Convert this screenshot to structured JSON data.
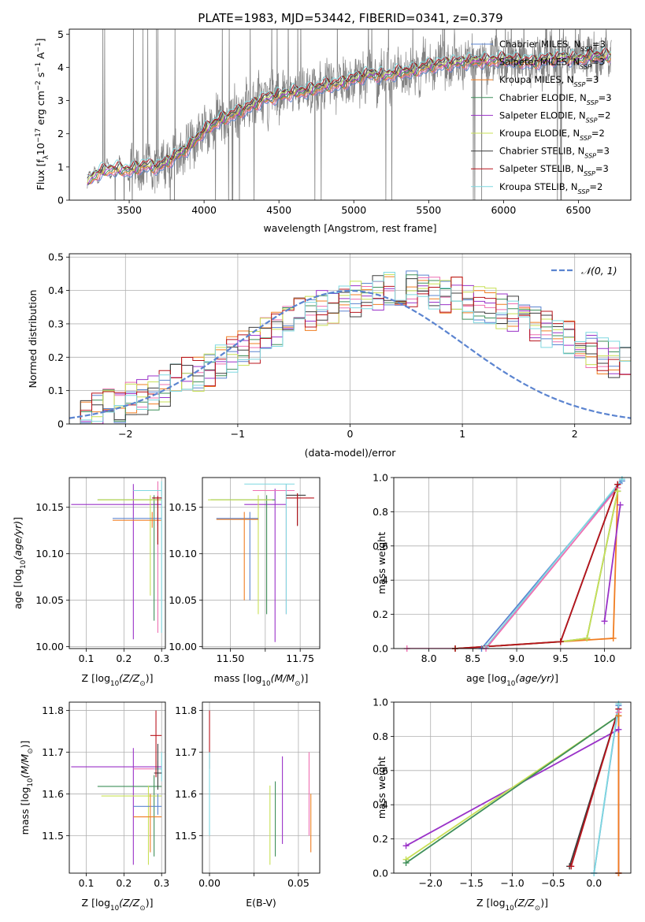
{
  "title": "PLATE=1983, MJD=53442, FIBERID=0341, z=0.379",
  "colors": {
    "grid": "#b0b0b0",
    "flux_data": "#808080",
    "gaussian": "#5b84d0"
  },
  "models": [
    {
      "name": "Chabrier MILES, N",
      "sub": "SSP",
      "suffix": "=3",
      "color": "#5b84d0"
    },
    {
      "name": "Salpeter MILES, N",
      "sub": "SSP",
      "suffix": "=3",
      "color": "#ee6fb1"
    },
    {
      "name": "Kroupa MILES, N",
      "sub": "SSP",
      "suffix": "=3",
      "color": "#f07d21"
    },
    {
      "name": "Chabrier ELODIE, N",
      "sub": "SSP",
      "suffix": "=3",
      "color": "#3f8f5a"
    },
    {
      "name": "Salpeter ELODIE, N",
      "sub": "SSP",
      "suffix": "=2",
      "color": "#9a32c8"
    },
    {
      "name": "Kroupa ELODIE, N",
      "sub": "SSP",
      "suffix": "=2",
      "color": "#c8e056"
    },
    {
      "name": "Chabrier STELIB, N",
      "sub": "SSP",
      "suffix": "=3",
      "color": "#3d3d3d"
    },
    {
      "name": "Salpeter STELIB, N",
      "sub": "SSP",
      "suffix": "=3",
      "color": "#b8141c"
    },
    {
      "name": "Kroupa STELIB, N",
      "sub": "SSP",
      "suffix": "=2",
      "color": "#7fd8e0"
    }
  ],
  "chart_data": [
    {
      "id": "spectrum",
      "type": "line",
      "xlabel": "wavelength [Angstrom, rest frame]",
      "ylabel": "Flux [f",
      "ylabel_parts": {
        "f_sub": "λ",
        "pre": "10",
        "exp1": "−17",
        "unit": " erg cm",
        "exp2": "−2",
        "s": " s",
        "exp3": "−1",
        "A": " A",
        "exp4": "−1",
        "close": "]"
      },
      "xlim": [
        3100,
        6850
      ],
      "ylim": [
        0,
        5.15
      ],
      "xticks": [
        3500,
        4000,
        4500,
        5000,
        5500,
        6000,
        6500
      ],
      "yticks": [
        0,
        1,
        2,
        3,
        4,
        5
      ],
      "grid": false,
      "legend": "right",
      "continuum_anchors": {
        "x": [
          3220,
          3300,
          3400,
          3500,
          3600,
          3700,
          3800,
          3900,
          4000,
          4100,
          4200,
          4300,
          4400,
          4500,
          4600,
          4700,
          4800,
          4900,
          5000,
          5100,
          5200,
          5300,
          5400,
          5500,
          5600,
          5700,
          5800,
          5900,
          6000,
          6100,
          6200,
          6300,
          6400,
          6500,
          6600,
          6700
        ],
        "y": [
          0.55,
          0.85,
          0.95,
          0.9,
          1.05,
          1.0,
          1.3,
          1.6,
          2.1,
          2.4,
          2.6,
          2.8,
          3.05,
          3.15,
          3.25,
          3.3,
          3.45,
          3.5,
          3.65,
          3.8,
          3.75,
          3.85,
          3.9,
          4.05,
          4.1,
          4.15,
          4.2,
          4.2,
          4.25,
          4.2,
          4.15,
          4.25,
          4.3,
          4.25,
          4.35,
          4.35
        ]
      }
    },
    {
      "id": "residuals",
      "type": "step",
      "xlabel": "(data-model)/error",
      "ylabel": "Normed distribution",
      "xlim": [
        -2.5,
        2.5
      ],
      "ylim": [
        0,
        0.51
      ],
      "xticks": [
        -2,
        -1,
        0,
        1,
        2
      ],
      "yticks": [
        0.0,
        0.1,
        0.2,
        0.3,
        0.4,
        0.5
      ],
      "grid": true,
      "legend": "top-right",
      "legend_label": "𝒩(0, 1)",
      "bin_width": 0.1,
      "series_base": [
        0.02,
        0.03,
        0.04,
        0.05,
        0.06,
        0.07,
        0.08,
        0.09,
        0.11,
        0.12,
        0.14,
        0.15,
        0.17,
        0.19,
        0.21,
        0.23,
        0.24,
        0.26,
        0.28,
        0.3,
        0.32,
        0.33,
        0.35,
        0.36,
        0.37,
        0.38,
        0.39,
        0.4,
        0.41,
        0.41,
        0.41,
        0.41,
        0.4,
        0.39,
        0.38,
        0.37,
        0.36,
        0.35,
        0.34,
        0.33,
        0.31,
        0.3,
        0.28,
        0.27,
        0.25,
        0.24,
        0.22,
        0.2,
        0.19,
        0.17
      ]
    },
    {
      "id": "age-vs-Z",
      "type": "errorbar",
      "xlabel": "Z [log",
      "xlabel_parts": {
        "sub": "10",
        "mid": "(Z/Z",
        "sub2": "⊙",
        "close": ")]"
      },
      "ylabel": "age  [log",
      "ylabel_parts": {
        "sub": "10",
        "mid": "(age/yr)",
        "close": "]"
      },
      "xlim": [
        0.055,
        0.31
      ],
      "ylim": [
        9.998,
        10.182
      ],
      "xticks": [
        0.1,
        0.2,
        0.3
      ],
      "xtick_labels": [
        "0.1",
        "0.2",
        "0.3"
      ],
      "yticks": [
        10.0,
        10.05,
        10.1,
        10.15
      ],
      "ytick_labels": [
        "10.00",
        "10.05",
        "10.10",
        "10.15"
      ],
      "grid": true,
      "points": [
        {
          "m": 4,
          "x": 0.225,
          "y": 10.153,
          "xlo": 0.06,
          "xhi": 0.3,
          "ylo": 10.008,
          "yhi": 10.175
        },
        {
          "m": 3,
          "x": 0.28,
          "y": 10.158,
          "xlo": 0.13,
          "xhi": 0.3,
          "ylo": 10.028,
          "yhi": 10.163
        },
        {
          "m": 5,
          "x": 0.27,
          "y": 10.158,
          "xlo": 0.13,
          "xhi": 0.3,
          "ylo": 10.055,
          "yhi": 10.163
        },
        {
          "m": 0,
          "x": 0.29,
          "y": 10.138,
          "xlo": 0.17,
          "xhi": 0.3,
          "ylo": 10.13,
          "yhi": 10.145
        },
        {
          "m": 2,
          "x": 0.275,
          "y": 10.136,
          "xlo": 0.17,
          "xhi": 0.3,
          "ylo": 10.128,
          "yhi": 10.145
        },
        {
          "m": 1,
          "x": 0.29,
          "y": 10.168,
          "xlo": 0.225,
          "xhi": 0.3,
          "ylo": 10.015,
          "yhi": 10.178
        },
        {
          "m": 8,
          "x": 0.3,
          "y": 10.168,
          "xlo": 0.225,
          "xhi": 0.3,
          "ylo": 10.015,
          "yhi": 10.178
        },
        {
          "m": 6,
          "x": 0.29,
          "y": 10.16,
          "xlo": 0.275,
          "xhi": 0.3,
          "ylo": 10.11,
          "yhi": 10.162
        },
        {
          "m": 7,
          "x": 0.29,
          "y": 10.16,
          "xlo": 0.275,
          "xhi": 0.3,
          "ylo": 10.11,
          "yhi": 10.162
        }
      ]
    },
    {
      "id": "age-vs-mass",
      "type": "errorbar",
      "xlabel": "mass [log",
      "xlabel_parts": {
        "sub": "10",
        "mid": "(M/M",
        "sub2": "⊙",
        "close": ")]"
      },
      "xlim": [
        11.4,
        11.82
      ],
      "ylim": [
        9.998,
        10.182
      ],
      "xticks": [
        11.5,
        11.625,
        11.75
      ],
      "xtick_labels": [
        "11.50",
        "",
        "11.75"
      ],
      "yticks": [
        10.0,
        10.05,
        10.1,
        10.15
      ],
      "ytick_labels": [
        "10.00",
        "10.05",
        "10.10",
        "10.15"
      ],
      "grid": true,
      "points": [
        {
          "m": 4,
          "x": 11.66,
          "y": 10.153,
          "xlo": 11.55,
          "xhi": 11.7,
          "ylo": 10.005,
          "yhi": 10.17
        },
        {
          "m": 3,
          "x": 11.63,
          "y": 10.158,
          "xlo": 11.43,
          "xhi": 11.66,
          "ylo": 10.035,
          "yhi": 10.163
        },
        {
          "m": 5,
          "x": 11.6,
          "y": 10.158,
          "xlo": 11.42,
          "xhi": 11.65,
          "ylo": 10.035,
          "yhi": 10.163
        },
        {
          "m": 0,
          "x": 11.57,
          "y": 10.138,
          "xlo": 11.45,
          "xhi": 11.6,
          "ylo": 10.05,
          "yhi": 10.145
        },
        {
          "m": 2,
          "x": 11.55,
          "y": 10.137,
          "xlo": 11.45,
          "xhi": 11.6,
          "ylo": 10.05,
          "yhi": 10.145
        },
        {
          "m": 1,
          "x": 11.7,
          "y": 10.168,
          "xlo": 11.58,
          "xhi": 11.73,
          "ylo": 10.035,
          "yhi": 10.175
        },
        {
          "m": 8,
          "x": 11.7,
          "y": 10.175,
          "xlo": 11.55,
          "xhi": 11.73,
          "ylo": 10.035,
          "yhi": 10.175
        },
        {
          "m": 6,
          "x": 11.74,
          "y": 10.163,
          "xlo": 11.7,
          "xhi": 11.77,
          "ylo": 10.13,
          "yhi": 10.165
        },
        {
          "m": 7,
          "x": 11.74,
          "y": 10.16,
          "xlo": 11.7,
          "xhi": 11.8,
          "ylo": 10.13,
          "yhi": 10.165
        }
      ]
    },
    {
      "id": "massweight-vs-age",
      "type": "line",
      "xlabel": "age  [log",
      "xlabel_parts": {
        "sub": "10",
        "mid": "(age/yr)",
        "close": "]"
      },
      "ylabel": "mass weight",
      "xlim": [
        7.6,
        10.3
      ],
      "ylim": [
        0,
        1.0
      ],
      "xticks": [
        8.0,
        8.5,
        9.0,
        9.5,
        10.0
      ],
      "xtick_labels": [
        "8.0",
        "8.5",
        "9.0",
        "9.5",
        "10.0"
      ],
      "yticks": [
        0.0,
        0.2,
        0.4,
        0.6,
        0.8,
        1.0
      ],
      "ytick_labels": [
        "0.0",
        "0.2",
        "0.4",
        "0.6",
        "0.8",
        "1.0"
      ],
      "grid": true,
      "series": [
        {
          "m": 0,
          "x": [
            8.6,
            10.2
          ],
          "y": [
            0.0,
            0.98
          ]
        },
        {
          "m": 8,
          "x": [
            8.65,
            10.2
          ],
          "y": [
            0.01,
            0.99
          ]
        },
        {
          "m": 1,
          "x": [
            7.75,
            8.65,
            10.15
          ],
          "y": [
            0.0,
            0.0,
            0.94
          ]
        },
        {
          "m": 2,
          "x": [
            8.3,
            9.5,
            10.1,
            10.15
          ],
          "y": [
            0.0,
            0.04,
            0.06,
            0.92
          ]
        },
        {
          "m": 3,
          "x": [
            8.3,
            9.5,
            9.8,
            10.15
          ],
          "y": [
            0.0,
            0.04,
            0.06,
            0.92
          ]
        },
        {
          "m": 5,
          "x": [
            9.5,
            9.8,
            10.15
          ],
          "y": [
            0.04,
            0.06,
            0.92
          ]
        },
        {
          "m": 4,
          "x": [
            10.0,
            10.18
          ],
          "y": [
            0.16,
            0.84
          ]
        },
        {
          "m": 6,
          "x": [
            9.5,
            10.15
          ],
          "y": [
            0.04,
            0.96
          ]
        },
        {
          "m": 7,
          "x": [
            8.3,
            9.5,
            10.15
          ],
          "y": [
            0.0,
            0.04,
            0.96
          ]
        }
      ]
    },
    {
      "id": "mass-vs-Z",
      "type": "errorbar",
      "xlabel": "Z [log",
      "xlabel_parts": {
        "sub": "10",
        "mid": "(Z/Z",
        "sub2": "⊙",
        "close": ")]"
      },
      "ylabel": "mass [log",
      "ylabel_parts": {
        "sub": "10",
        "mid": "(M/M",
        "sub2": "⊙",
        "close": ")]"
      },
      "xlim": [
        0.055,
        0.31
      ],
      "ylim": [
        11.41,
        11.82
      ],
      "xticks": [
        0.1,
        0.2,
        0.3
      ],
      "xtick_labels": [
        "0.1",
        "0.2",
        "0.3"
      ],
      "yticks": [
        11.5,
        11.6,
        11.7,
        11.8
      ],
      "ytick_labels": [
        "11.5",
        "11.6",
        "11.7",
        "11.8"
      ],
      "grid": true,
      "points": [
        {
          "m": 4,
          "x": 0.225,
          "y": 11.665,
          "xlo": 0.06,
          "xhi": 0.3,
          "ylo": 11.43,
          "yhi": 11.71
        },
        {
          "m": 3,
          "x": 0.28,
          "y": 11.618,
          "xlo": 0.13,
          "xhi": 0.3,
          "ylo": 11.45,
          "yhi": 11.645
        },
        {
          "m": 5,
          "x": 0.265,
          "y": 11.595,
          "xlo": 0.14,
          "xhi": 0.3,
          "ylo": 11.43,
          "yhi": 11.62
        },
        {
          "m": 0,
          "x": 0.29,
          "y": 11.57,
          "xlo": 0.225,
          "xhi": 0.3,
          "ylo": 11.55,
          "yhi": 11.6
        },
        {
          "m": 2,
          "x": 0.27,
          "y": 11.545,
          "xlo": 0.225,
          "xhi": 0.3,
          "ylo": 11.46,
          "yhi": 11.6
        },
        {
          "m": 1,
          "x": 0.29,
          "y": 11.66,
          "xlo": 0.225,
          "xhi": 0.3,
          "ylo": 11.64,
          "yhi": 11.68
        },
        {
          "m": 8,
          "x": 0.3,
          "y": 11.66,
          "xlo": 0.28,
          "xhi": 0.3,
          "ylo": 11.63,
          "yhi": 11.7
        },
        {
          "m": 6,
          "x": 0.29,
          "y": 11.65,
          "xlo": 0.28,
          "xhi": 0.3,
          "ylo": 11.61,
          "yhi": 11.72
        },
        {
          "m": 7,
          "x": 0.285,
          "y": 11.74,
          "xlo": 0.27,
          "xhi": 0.3,
          "ylo": 11.64,
          "yhi": 11.8
        }
      ]
    },
    {
      "id": "mass-vs-EBV",
      "type": "errorbar",
      "xlabel": "E(B-V)",
      "xlim": [
        -0.004,
        0.062
      ],
      "ylim": [
        11.41,
        11.82
      ],
      "xticks": [
        0.0,
        0.025,
        0.05
      ],
      "xtick_labels": [
        "0.00",
        "",
        "0.05"
      ],
      "yticks": [
        11.5,
        11.6,
        11.7,
        11.8
      ],
      "ytick_labels": [
        "11.5",
        "11.6",
        "11.7",
        "11.8"
      ],
      "grid": true,
      "points": [
        {
          "m": 7,
          "x": 0.0,
          "y": 11.74,
          "xlo": 0.0,
          "xhi": 0.0,
          "ylo": 11.66,
          "yhi": 11.8
        },
        {
          "m": 8,
          "x": 0.0,
          "y": 11.6,
          "xlo": 0.0,
          "xhi": 0.0,
          "ylo": 11.5,
          "yhi": 11.7
        },
        {
          "m": 5,
          "x": 0.034,
          "y": 11.55,
          "xlo": 0.034,
          "xhi": 0.034,
          "ylo": 11.43,
          "yhi": 11.62
        },
        {
          "m": 3,
          "x": 0.037,
          "y": 11.55,
          "xlo": 0.037,
          "xhi": 0.037,
          "ylo": 11.45,
          "yhi": 11.63
        },
        {
          "m": 4,
          "x": 0.041,
          "y": 11.6,
          "xlo": 0.041,
          "xhi": 0.041,
          "ylo": 11.48,
          "yhi": 11.69
        },
        {
          "m": 1,
          "x": 0.056,
          "y": 11.6,
          "xlo": 0.056,
          "xhi": 0.056,
          "ylo": 11.5,
          "yhi": 11.7
        },
        {
          "m": 2,
          "x": 0.057,
          "y": 11.55,
          "xlo": 0.057,
          "xhi": 0.057,
          "ylo": 11.46,
          "yhi": 11.6
        }
      ]
    },
    {
      "id": "massweight-vs-Z",
      "type": "line",
      "xlabel": "Z [log",
      "xlabel_parts": {
        "sub": "10",
        "mid": "(Z/Z",
        "sub2": "⊙",
        "close": ")]"
      },
      "ylabel": "mass weight",
      "xlim": [
        -2.45,
        0.45
      ],
      "ylim": [
        0,
        1.0
      ],
      "xticks": [
        -2.0,
        -1.5,
        -1.0,
        -0.5,
        0.0
      ],
      "xtick_labels": [
        "−2.0",
        "−1.5",
        "−1.0",
        "−0.5",
        "0.0"
      ],
      "yticks": [
        0.0,
        0.2,
        0.4,
        0.6,
        0.8,
        1.0
      ],
      "ytick_labels": [
        "0.0",
        "0.2",
        "0.4",
        "0.6",
        "0.8",
        "1.0"
      ],
      "grid": true,
      "series": [
        {
          "m": 4,
          "x": [
            -2.3,
            0.3
          ],
          "y": [
            0.16,
            0.84
          ]
        },
        {
          "m": 5,
          "x": [
            -2.3,
            0.3,
            0.3
          ],
          "y": [
            0.08,
            0.92,
            0.0
          ]
        },
        {
          "m": 3,
          "x": [
            -2.3,
            0.3,
            0.3
          ],
          "y": [
            0.06,
            0.92,
            0.0
          ]
        },
        {
          "m": 6,
          "x": [
            -0.3,
            0.3,
            0.3
          ],
          "y": [
            0.04,
            0.96,
            0.0
          ]
        },
        {
          "m": 7,
          "x": [
            -0.28,
            0.3,
            0.3
          ],
          "y": [
            0.04,
            0.96,
            0.0
          ]
        },
        {
          "m": 0,
          "x": [
            0.0,
            0.3
          ],
          "y": [
            0.0,
            0.98
          ]
        },
        {
          "m": 8,
          "x": [
            0.0,
            0.3
          ],
          "y": [
            0.0,
            0.99
          ]
        },
        {
          "m": 1,
          "x": [
            0.3,
            0.3
          ],
          "y": [
            0.0,
            0.94
          ]
        },
        {
          "m": 2,
          "x": [
            0.3,
            0.3
          ],
          "y": [
            0.0,
            0.92
          ]
        }
      ]
    }
  ]
}
